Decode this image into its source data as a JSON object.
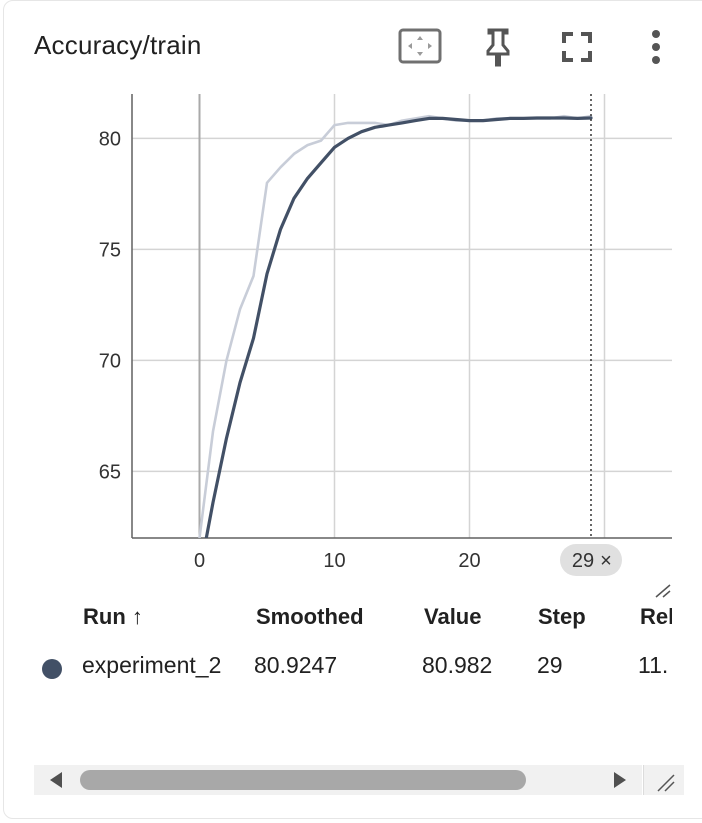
{
  "card": {
    "title": "Accuracy/train",
    "toolbar": [
      {
        "name": "fit-domain-icon"
      },
      {
        "name": "pin-icon"
      },
      {
        "name": "fullscreen-icon"
      },
      {
        "name": "more-vert-icon"
      }
    ]
  },
  "chart_data": {
    "type": "line",
    "title": "Accuracy/train",
    "xlabel": "",
    "ylabel": "",
    "xlim": [
      -5,
      35
    ],
    "ylim": [
      62,
      82
    ],
    "x_ticks": [
      "0",
      "10",
      "20"
    ],
    "y_ticks": [
      "65",
      "70",
      "75",
      "80"
    ],
    "grid": true,
    "hover_step": "29",
    "hover_close": "×",
    "series": [
      {
        "name": "experiment_2",
        "role": "raw",
        "color": "#c8cdd8",
        "x": [
          0,
          1,
          2,
          3,
          4,
          5,
          6,
          7,
          8,
          9,
          10,
          11,
          12,
          13,
          14,
          15,
          16,
          17,
          18,
          19,
          20,
          21,
          22,
          23,
          24,
          25,
          26,
          27,
          28,
          29
        ],
        "values": [
          62.0,
          66.8,
          70.0,
          72.3,
          73.8,
          78.0,
          78.7,
          79.3,
          79.7,
          79.9,
          80.6,
          80.7,
          80.7,
          80.7,
          80.6,
          80.8,
          80.9,
          81.0,
          80.9,
          80.8,
          80.8,
          80.8,
          80.9,
          80.9,
          80.9,
          80.9,
          80.9,
          81.0,
          80.9,
          81.0
        ]
      },
      {
        "name": "experiment_2",
        "role": "smoothed",
        "color": "#425066",
        "x": [
          0.5,
          1,
          2,
          3,
          4,
          5,
          6,
          7,
          8,
          9,
          10,
          11,
          12,
          13,
          14,
          15,
          16,
          17,
          18,
          19,
          20,
          21,
          22,
          23,
          24,
          25,
          26,
          27,
          28,
          29
        ],
        "values": [
          62.0,
          63.6,
          66.5,
          69.0,
          71.0,
          73.9,
          75.9,
          77.3,
          78.2,
          78.9,
          79.6,
          80.0,
          80.3,
          80.5,
          80.6,
          80.7,
          80.8,
          80.9,
          80.9,
          80.85,
          80.8,
          80.8,
          80.85,
          80.9,
          80.9,
          80.92,
          80.92,
          80.92,
          80.9,
          80.92
        ]
      }
    ]
  },
  "table": {
    "headers": {
      "run": "Run ↑",
      "smoothed": "Smoothed",
      "value": "Value",
      "step": "Step",
      "relative": "Rel"
    },
    "rows": [
      {
        "color": "#425066",
        "run": "experiment_2",
        "smoothed": "80.9247",
        "value": "80.982",
        "step": "29",
        "relative": "11."
      }
    ]
  }
}
